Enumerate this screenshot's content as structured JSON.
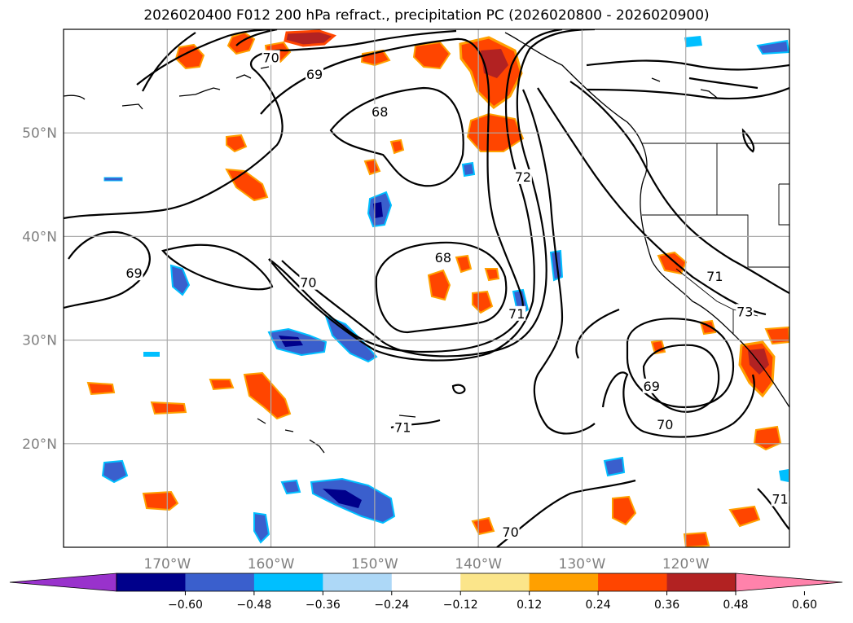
{
  "title": "2026020400 F012 200 hPa refract., precipitation PC (2026020800 - 2026020900)",
  "map": {
    "lon_range": [
      -180,
      -110
    ],
    "lat_range": [
      10,
      60
    ],
    "gridlines": true,
    "lat_ticks": [
      {
        "value": 20,
        "label": "20°N"
      },
      {
        "value": 30,
        "label": "30°N"
      },
      {
        "value": 40,
        "label": "40°N"
      },
      {
        "value": 50,
        "label": "50°N"
      }
    ],
    "lon_ticks": [
      {
        "value": -170,
        "label": "170°W"
      },
      {
        "value": -160,
        "label": "160°W"
      },
      {
        "value": -150,
        "label": "150°W"
      },
      {
        "value": -140,
        "label": "140°W"
      },
      {
        "value": -130,
        "label": "130°W"
      },
      {
        "value": -120,
        "label": "120°W"
      }
    ],
    "contour_labels": [
      {
        "text": "70",
        "lon": -160,
        "lat": 57.2
      },
      {
        "text": "69",
        "lon": -155.8,
        "lat": 55.6
      },
      {
        "text": "68",
        "lon": -149.5,
        "lat": 52
      },
      {
        "text": "72",
        "lon": -135.7,
        "lat": 45.7
      },
      {
        "text": "69",
        "lon": -173.2,
        "lat": 36.4
      },
      {
        "text": "70",
        "lon": -156.4,
        "lat": 35.5
      },
      {
        "text": "68",
        "lon": -143.4,
        "lat": 37.9
      },
      {
        "text": "71",
        "lon": -136.3,
        "lat": 32.5
      },
      {
        "text": "71",
        "lon": -117.2,
        "lat": 36.1
      },
      {
        "text": "73",
        "lon": -114.3,
        "lat": 32.7
      },
      {
        "text": "69",
        "lon": -123.3,
        "lat": 25.5
      },
      {
        "text": "70",
        "lon": -122,
        "lat": 21.8
      },
      {
        "text": "71",
        "lon": -147.3,
        "lat": 21.5
      },
      {
        "text": "70",
        "lon": -136.9,
        "lat": 11.4
      },
      {
        "text": "71",
        "lon": -110.9,
        "lat": 14.6
      }
    ]
  },
  "colorbar": {
    "boundaries": [
      -0.6,
      -0.48,
      -0.36,
      -0.24,
      -0.12,
      0.12,
      0.24,
      0.36,
      0.48,
      0.6
    ],
    "labels": [
      "−0.60",
      "−0.48",
      "−0.36",
      "−0.24",
      "−0.12",
      "0.12",
      "0.24",
      "0.36",
      "0.48",
      "0.60"
    ],
    "colors": [
      "#9932cc",
      "#00008b",
      "#3a5fcd",
      "#00bfff",
      "#add8f7",
      "#ffffff",
      "#fbe58a",
      "#ffa000",
      "#ff4500",
      "#b22222",
      "#ff82ab"
    ],
    "extend": "both"
  }
}
